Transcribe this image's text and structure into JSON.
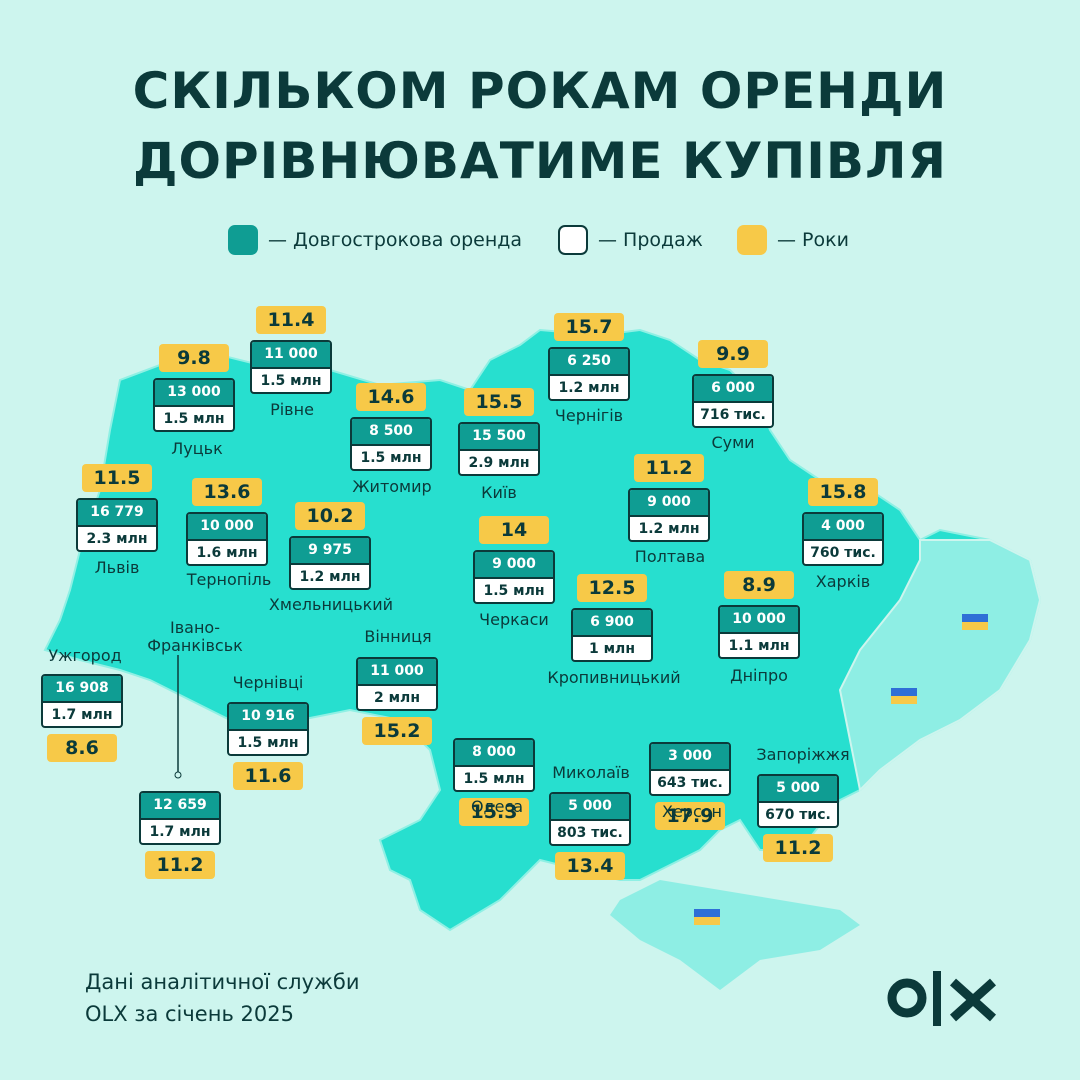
{
  "header": {
    "title_lines": [
      "СКІЛЬКОМ РОКАМ ОРЕНДИ",
      "ДОРІВНЮВАТИМЕ КУПІВЛЯ"
    ]
  },
  "legend": {
    "items": [
      {
        "label": "— Довгострокова оренда",
        "kind": "rent"
      },
      {
        "label": "— Продаж",
        "kind": "sale"
      },
      {
        "label": "— Роки",
        "kind": "years"
      }
    ]
  },
  "cities": [
    {
      "name": "Луцьк",
      "rent": "13 000",
      "sale": "1.5 млн",
      "years": "9.8"
    },
    {
      "name": "Рівне",
      "rent": "11 000",
      "sale": "1.5 млн",
      "years": "11.4"
    },
    {
      "name": "Львів",
      "rent": "16 779",
      "sale": "2.3 млн",
      "years": "11.5"
    },
    {
      "name": "Тернопіль",
      "rent": "10 000",
      "sale": "1.6 млн",
      "years": "13.6"
    },
    {
      "name": "Житомир",
      "rent": "8 500",
      "sale": "1.5 млн",
      "years": "14.6"
    },
    {
      "name": "Київ",
      "rent": "15 500",
      "sale": "2.9 млн",
      "years": "15.5"
    },
    {
      "name": "Чернігів",
      "rent": "6 250",
      "sale": "1.2 млн",
      "years": "15.7"
    },
    {
      "name": "Суми",
      "rent": "6 000",
      "sale": "716 тис.",
      "years": "9.9"
    },
    {
      "name": "Хмельницький",
      "rent": "9 975",
      "sale": "1.2 млн",
      "years": "10.2"
    },
    {
      "name": "Полтава",
      "rent": "9 000",
      "sale": "1.2 млн",
      "years": "11.2"
    },
    {
      "name": "Харків",
      "rent": "4 000",
      "sale": "760 тис.",
      "years": "15.8"
    },
    {
      "name": "Черкаси",
      "rent": "9 000",
      "sale": "1.5 млн",
      "years": "14"
    },
    {
      "name": "Кропивницький",
      "rent": "6 900",
      "sale": "1 млн",
      "years": "12.5"
    },
    {
      "name": "Дніпро",
      "rent": "10 000",
      "sale": "1.1 млн",
      "years": "8.9"
    },
    {
      "name": "Вінниця",
      "rent": "11 000",
      "sale": "2 млн",
      "years": "15.2"
    },
    {
      "name": "Ужгород",
      "rent": "16 908",
      "sale": "1.7 млн",
      "years": "8.6"
    },
    {
      "name": "Івано-\nФранківськ",
      "rent": "12 659",
      "sale": "1.7 млн",
      "years": "11.2"
    },
    {
      "name": "Чернівці",
      "rent": "10 916",
      "sale": "1.5 млн",
      "years": "11.6"
    },
    {
      "name": "Одеса",
      "rent": "8 000",
      "sale": "1.5 млн",
      "years": "15.3"
    },
    {
      "name": "Миколаїв",
      "rent": "5 000",
      "sale": "803 тис.",
      "years": "13.4"
    },
    {
      "name": "Херсон",
      "rent": "3 000",
      "sale": "643 тис.",
      "years": "17.9"
    },
    {
      "name": "Запоріжжя",
      "rent": "5 000",
      "sale": "670 тис.",
      "years": "11.2"
    }
  ],
  "footer": {
    "lines": [
      "Дані аналітичної служби",
      "OLX за січень 2025"
    ]
  }
}
